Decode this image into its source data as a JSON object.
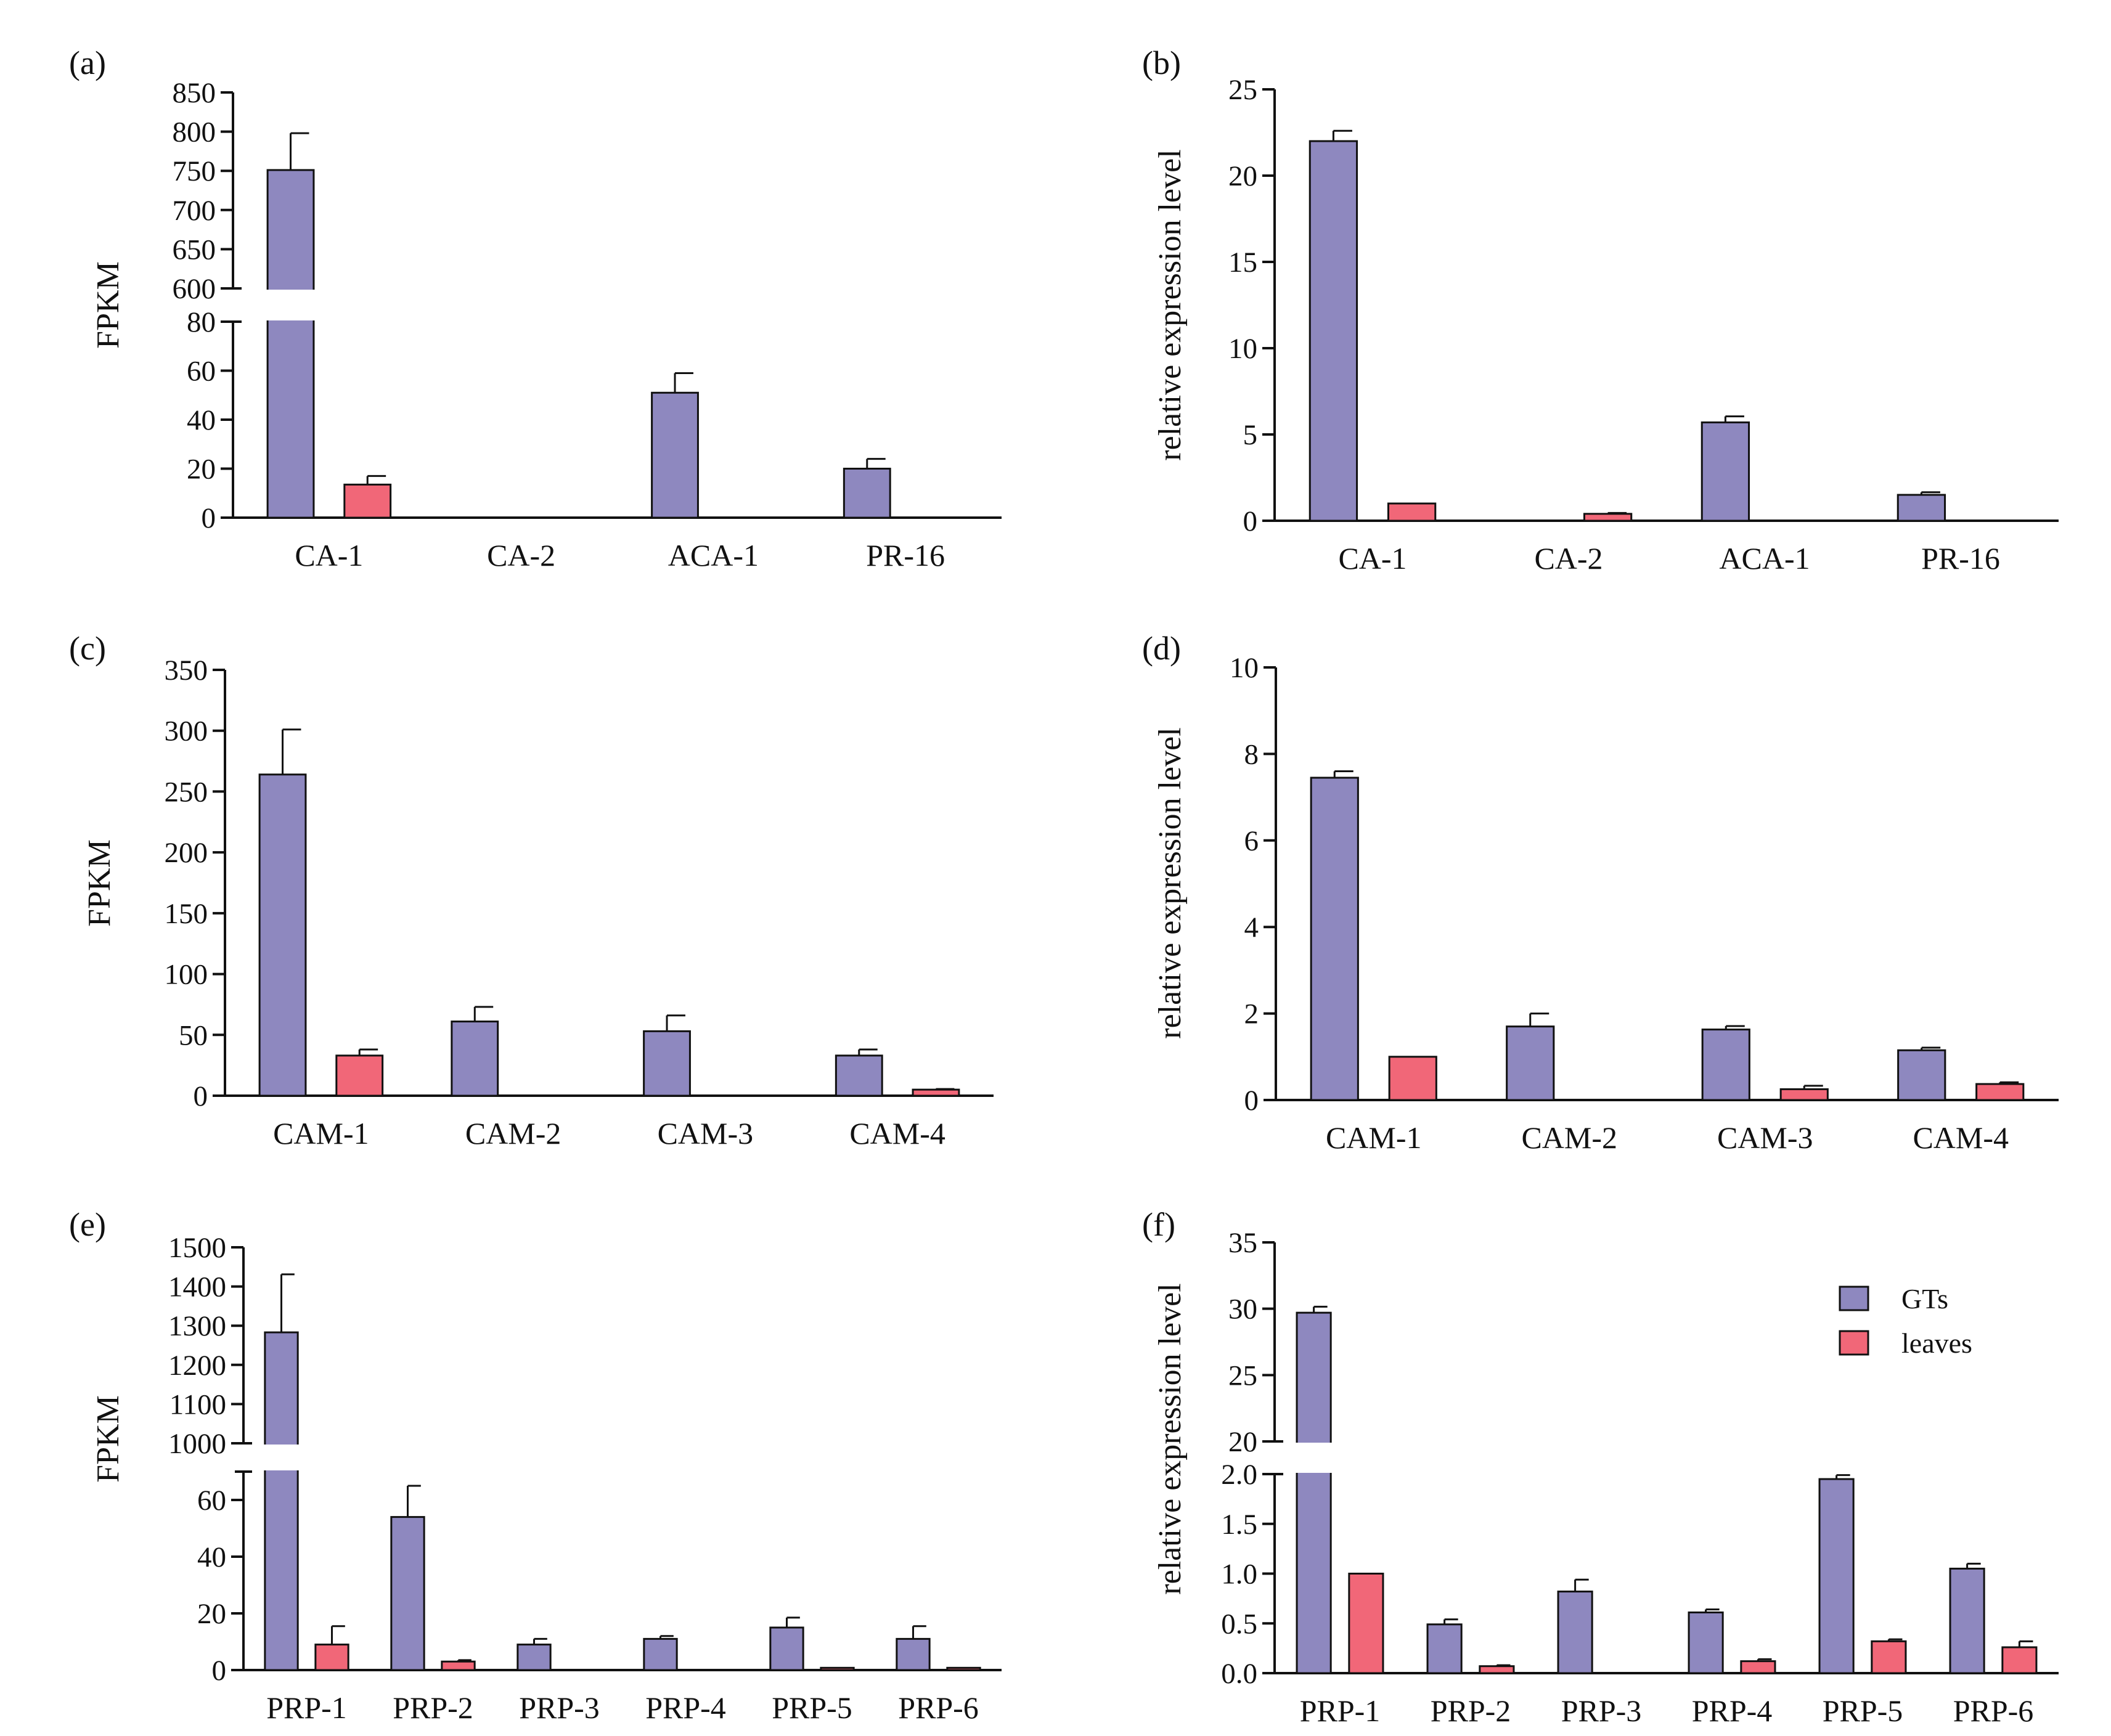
{
  "colors": {
    "GTs": "#8E88BF",
    "leaves": "#F16778",
    "axis": "#111111"
  },
  "legend": {
    "items": [
      "GTs",
      "leaves"
    ],
    "placement": "top-right of panel (f)"
  },
  "chart_data": [
    {
      "id": "a",
      "panel_label": "(a)",
      "type": "bar",
      "ylabel": "FPKM",
      "categories": [
        "CA-1",
        "CA-2",
        "ACA-1",
        "PR-16"
      ],
      "series": [
        {
          "name": "GTs",
          "values": [
            751,
            0,
            51,
            20
          ],
          "errors": [
            47,
            0,
            8,
            4
          ]
        },
        {
          "name": "leaves",
          "values": [
            13.5,
            0,
            0,
            0
          ],
          "errors": [
            3.5,
            0,
            0,
            0
          ]
        }
      ],
      "axis_break": {
        "lower": [
          0,
          80
        ],
        "upper": [
          600,
          850
        ]
      },
      "yticks_lower": [
        0,
        20,
        40,
        60,
        80
      ],
      "yticks_upper": [
        600,
        650,
        700,
        750,
        800,
        850
      ]
    },
    {
      "id": "b",
      "panel_label": "(b)",
      "type": "bar",
      "ylabel": "relative expression level",
      "categories": [
        "CA-1",
        "CA-2",
        "ACA-1",
        "PR-16"
      ],
      "series": [
        {
          "name": "GTs",
          "values": [
            22,
            0,
            5.7,
            1.5
          ],
          "errors": [
            0.6,
            0,
            0.35,
            0.15
          ]
        },
        {
          "name": "leaves",
          "values": [
            1,
            0.4,
            0,
            0
          ],
          "errors": [
            0,
            0.05,
            0,
            0
          ]
        }
      ],
      "ylim": [
        0,
        25
      ],
      "yticks": [
        0,
        5,
        10,
        15,
        20,
        25
      ]
    },
    {
      "id": "c",
      "panel_label": "(c)",
      "type": "bar",
      "ylabel": "FPKM",
      "categories": [
        "CAM-1",
        "CAM-2",
        "CAM-3",
        "CAM-4"
      ],
      "series": [
        {
          "name": "GTs",
          "values": [
            264,
            61,
            53,
            33
          ],
          "errors": [
            37,
            12,
            13,
            5
          ]
        },
        {
          "name": "leaves",
          "values": [
            33,
            0,
            0,
            5
          ],
          "errors": [
            5,
            0,
            0,
            0.5
          ]
        }
      ],
      "ylim": [
        0,
        350
      ],
      "yticks": [
        0,
        50,
        100,
        150,
        200,
        250,
        300,
        350
      ]
    },
    {
      "id": "d",
      "panel_label": "(d)",
      "type": "bar",
      "ylabel": "relative expression level",
      "categories": [
        "CAM-1",
        "CAM-2",
        "CAM-3",
        "CAM-4"
      ],
      "series": [
        {
          "name": "GTs",
          "values": [
            7.45,
            1.7,
            1.63,
            1.15
          ],
          "errors": [
            0.15,
            0.3,
            0.08,
            0.06
          ]
        },
        {
          "name": "leaves",
          "values": [
            1,
            0,
            0.25,
            0.37
          ],
          "errors": [
            0,
            0,
            0.08,
            0.04
          ]
        }
      ],
      "ylim": [
        0,
        10
      ],
      "yticks": [
        0,
        2,
        4,
        6,
        8,
        10
      ]
    },
    {
      "id": "e",
      "panel_label": "(e)",
      "type": "bar",
      "ylabel": "FPKM",
      "categories": [
        "PRP-1",
        "PRP-2",
        "PRP-3",
        "PRP-4",
        "PRP-5",
        "PRP-6"
      ],
      "series": [
        {
          "name": "GTs",
          "values": [
            1283,
            54,
            9,
            11,
            15,
            11
          ],
          "errors": [
            148,
            11,
            2,
            1,
            3.5,
            4.5
          ]
        },
        {
          "name": "leaves",
          "values": [
            9,
            3,
            0,
            0,
            0.8,
            0.8
          ],
          "errors": [
            6.5,
            0.5,
            0,
            0,
            0,
            0
          ]
        }
      ],
      "axis_break": {
        "lower": [
          0,
          70
        ],
        "upper": [
          1000,
          1500
        ]
      },
      "yticks_lower": [
        0,
        20,
        40,
        60
      ],
      "yticks_upper": [
        1000,
        1100,
        1200,
        1300,
        1400,
        1500
      ]
    },
    {
      "id": "f",
      "panel_label": "(f)",
      "type": "bar",
      "ylabel": "relative expression level",
      "categories": [
        "PRP-1",
        "PRP-2",
        "PRP-3",
        "PRP-4",
        "PRP-5",
        "PRP-6"
      ],
      "series": [
        {
          "name": "GTs",
          "values": [
            29.7,
            0.49,
            0.82,
            0.61,
            1.95,
            1.05
          ],
          "errors": [
            0.45,
            0.05,
            0.12,
            0.03,
            0.04,
            0.05
          ]
        },
        {
          "name": "leaves",
          "values": [
            1,
            0.07,
            0,
            0.12,
            0.32,
            0.26
          ],
          "errors": [
            0,
            0.01,
            0,
            0.02,
            0.02,
            0.06
          ]
        }
      ],
      "axis_break": {
        "lower": [
          0,
          2.0
        ],
        "upper": [
          20,
          35
        ]
      },
      "yticks_lower": [
        "0.0",
        "0.5",
        "1.0",
        "1.5",
        "2.0"
      ],
      "yticks_upper": [
        20,
        25,
        30,
        35
      ]
    }
  ]
}
